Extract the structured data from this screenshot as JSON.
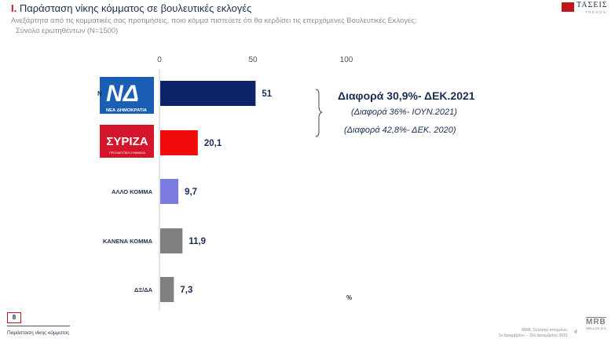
{
  "header": {
    "title_number": "I.",
    "title_text": "Παράσταση νίκης κόμματος σε βουλευτικές εκλογές",
    "subtitle": "Ανεξάρτητα από τις κομματικές σας προτιμήσεις, ποιο κόμμα πιστεύετε ότι θα κερδίσει τις επερχόμενες Βουλευτικές Εκλογές;",
    "sample": "Σύνολο ερωτηθέντων (N=1500)"
  },
  "brand": {
    "top_logo_text": "ΤΑΣΕΙΣ",
    "top_logo_sub": "TRENDS",
    "bottom_logo_text": "MRB",
    "bottom_logo_sub": "HELLAS S.A."
  },
  "chart_data": {
    "type": "bar",
    "orientation": "horizontal",
    "categories": [
      "ΝΔ",
      "ΣΥΡΙΖΑ",
      "ΑΛΛΟ ΚΟΜΜΑ",
      "ΚΑΝΕΝΑ ΚΟΜΜΑ",
      "ΔΞ/ΔΑ"
    ],
    "category_logos": [
      "ΝΕΑ ΔΗΜΟΚΡΑΤΙΑ",
      "ΣΥΡΙΖΑ ΠΡΟΟΔΕΥΤΙΚΗ ΣΥΜΜΑΧΙΑ",
      "",
      "",
      ""
    ],
    "values": [
      51,
      20.1,
      9.7,
      11.9,
      7.3
    ],
    "value_labels": [
      "51",
      "20,1",
      "9,7",
      "11,9",
      "7,3"
    ],
    "colors": [
      "#0c2466",
      "#f00a0a",
      "#7b7be0",
      "#808080",
      "#808080"
    ],
    "xlim": [
      0,
      100
    ],
    "xticks": [
      0,
      50,
      100
    ],
    "unit": "%",
    "annotations": {
      "main": "Διαφορά 30,9%- ΔΕΚ.2021",
      "sub1": "(Διαφορά 36%- ΙΟΥΝ.2021)",
      "sub2": "(Διαφορά 42,8%- ΔΕΚ. 2020)"
    }
  },
  "footer": {
    "page_badge": "8",
    "left_text": "Παράσταση νίκης κόμματος",
    "right_line1": "MRB, Συλλογή στοιχείων:",
    "right_line2": "1ο Δεκεμβρίου – 10ο Δεκεμβρίου 2021",
    "page_number": "4"
  }
}
